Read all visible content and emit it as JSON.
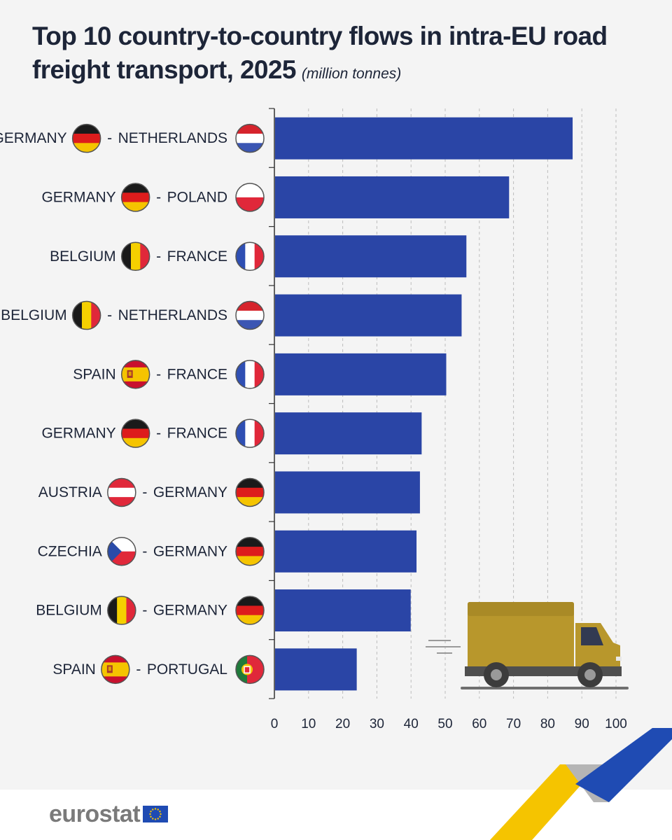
{
  "header": {
    "title": "Top 10 country-to-country flows in intra-EU road freight transport, 2025",
    "title_line1": "Top 10 country-to-country flows in intra-EU road",
    "title_line2": "freight transport, 2025",
    "unit": "(million tonnes)"
  },
  "brand": {
    "name": "eurostat",
    "colors": {
      "bar": "#2a45a6",
      "accent_yellow": "#f5c400",
      "accent_blue": "#1f4bb3",
      "truck": "#b8972c"
    }
  },
  "chart_data": {
    "type": "bar",
    "orientation": "horizontal",
    "title": "Top 10 country-to-country flows in intra-EU road freight transport, 2025",
    "unit": "(million tonnes)",
    "categories": [
      {
        "from": "GERMANY",
        "to": "NETHERLANDS",
        "from_flag": "de",
        "to_flag": "nl"
      },
      {
        "from": "GERMANY",
        "to": "POLAND",
        "from_flag": "de",
        "to_flag": "pl"
      },
      {
        "from": "BELGIUM",
        "to": "FRANCE",
        "from_flag": "be",
        "to_flag": "fr"
      },
      {
        "from": "BELGIUM",
        "to": "NETHERLANDS",
        "from_flag": "be",
        "to_flag": "nl"
      },
      {
        "from": "SPAIN",
        "to": "FRANCE",
        "from_flag": "es",
        "to_flag": "fr"
      },
      {
        "from": "GERMANY",
        "to": "FRANCE",
        "from_flag": "de",
        "to_flag": "fr"
      },
      {
        "from": "AUSTRIA",
        "to": "GERMANY",
        "from_flag": "at",
        "to_flag": "de"
      },
      {
        "from": "CZECHIA",
        "to": "GERMANY",
        "from_flag": "cz",
        "to_flag": "de"
      },
      {
        "from": "BELGIUM",
        "to": "GERMANY",
        "from_flag": "be",
        "to_flag": "de"
      },
      {
        "from": "SPAIN",
        "to": "PORTUGAL",
        "from_flag": "es",
        "to_flag": "pt"
      }
    ],
    "values": [
      87.1,
      68.5,
      56.0,
      54.6,
      50.1,
      42.9,
      42.4,
      41.4,
      39.7,
      23.9
    ],
    "xlim": [
      0,
      100
    ],
    "xticks": [
      0,
      10,
      20,
      30,
      40,
      50,
      60,
      70,
      80,
      90,
      100
    ],
    "grid": "vertical dashed",
    "separator": "-"
  }
}
